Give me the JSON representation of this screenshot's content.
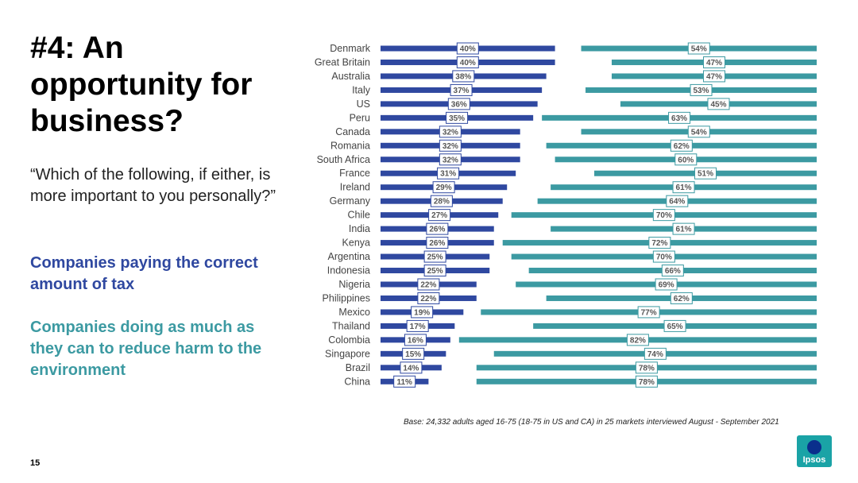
{
  "slide": {
    "title": "#4: An opportunity for business?",
    "question": "“Which of the following, if either, is more important to you personally?”",
    "legend": {
      "tax": "Companies paying the correct amount of tax",
      "environment": "Companies doing as much as they can to reduce harm to the environment"
    },
    "base_note": "Base: 24,332 adults aged 16-75 (18-75 in US and CA) in 25 markets interviewed August - September 2021",
    "page_number": "15",
    "logo_text": "Ipsos"
  },
  "colors": {
    "tax": "#2f48a0",
    "environment": "#3c9aa2"
  },
  "chart_data": {
    "type": "bar",
    "orientation": "horizontal",
    "categories": [
      "Denmark",
      "Great Britain",
      "Australia",
      "Italy",
      "US",
      "Peru",
      "Canada",
      "Romania",
      "South Africa",
      "France",
      "Ireland",
      "Germany",
      "Chile",
      "India",
      "Kenya",
      "Argentina",
      "Indonesia",
      "Nigeria",
      "Philippines",
      "Mexico",
      "Thailand",
      "Colombia",
      "Singapore",
      "Brazil",
      "China"
    ],
    "series": [
      {
        "name": "Companies paying the correct amount of tax",
        "values": [
          40,
          40,
          38,
          37,
          36,
          35,
          32,
          32,
          32,
          31,
          29,
          28,
          27,
          26,
          26,
          25,
          25,
          22,
          22,
          19,
          17,
          16,
          15,
          14,
          11
        ]
      },
      {
        "name": "Companies doing as much as they can to reduce harm to the environment",
        "values": [
          54,
          47,
          47,
          53,
          45,
          63,
          54,
          62,
          60,
          51,
          61,
          64,
          70,
          61,
          72,
          70,
          66,
          69,
          62,
          77,
          65,
          82,
          74,
          78,
          78
        ]
      }
    ],
    "value_suffix": "%",
    "xlim": [
      0,
      100
    ]
  }
}
